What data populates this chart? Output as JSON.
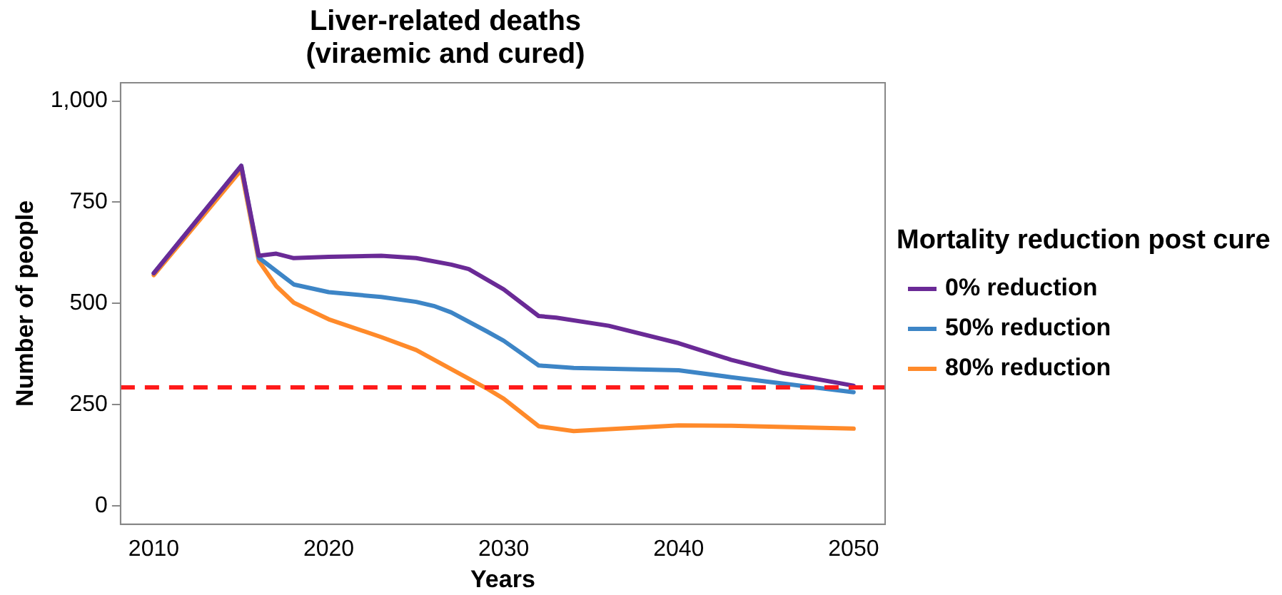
{
  "chart_data": {
    "type": "line",
    "title": "Liver-related deaths\n(viraemic and cured)",
    "xlabel": "Years",
    "ylabel": "Number of people",
    "legend_title": "Mortality reduction post cure",
    "xlim": [
      2008.1,
      2051.8
    ],
    "xticks": [
      2010,
      2020,
      2030,
      2040,
      2050
    ],
    "ylim": [
      -45,
      1045
    ],
    "yticks": [
      0,
      250,
      500,
      750,
      {
        "value": 1000,
        "label": "1,000"
      }
    ],
    "grid": false,
    "legend": "right",
    "marker": "none",
    "line_style": "solid",
    "ref_lines": [
      {
        "axis": "y",
        "value": 293,
        "color": "#ff1a1a",
        "line_style": "dashed"
      }
    ],
    "series": [
      {
        "name": "0% reduction",
        "color": "#6a2a96",
        "x": [
          2010,
          2015,
          2016,
          2017,
          2018,
          2020,
          2023,
          2025,
          2027,
          2028,
          2030,
          2032,
          2033,
          2036,
          2040,
          2043,
          2046,
          2050
        ],
        "values": [
          575,
          840,
          618,
          623,
          612,
          615,
          618,
          612,
          596,
          585,
          535,
          469,
          465,
          445,
          402,
          361,
          328,
          297
        ]
      },
      {
        "name": "50% reduction",
        "color": "#3d85c6",
        "x": [
          2010,
          2015,
          2016,
          2018,
          2020,
          2023,
          2025,
          2026,
          2027,
          2029,
          2030,
          2032,
          2034,
          2040,
          2043,
          2046,
          2050
        ],
        "values": [
          575,
          840,
          613,
          547,
          528,
          516,
          504,
          494,
          478,
          432,
          408,
          347,
          341,
          335,
          318,
          302,
          281
        ]
      },
      {
        "name": "80% reduction",
        "color": "#ff8a2a",
        "x": [
          2010,
          2015,
          2016,
          2017,
          2018,
          2020,
          2023,
          2025,
          2027,
          2029,
          2030,
          2032,
          2034,
          2040,
          2043,
          2050
        ],
        "values": [
          570,
          830,
          605,
          543,
          502,
          461,
          417,
          385,
          338,
          291,
          265,
          197,
          185,
          199,
          198,
          191
        ]
      }
    ]
  }
}
